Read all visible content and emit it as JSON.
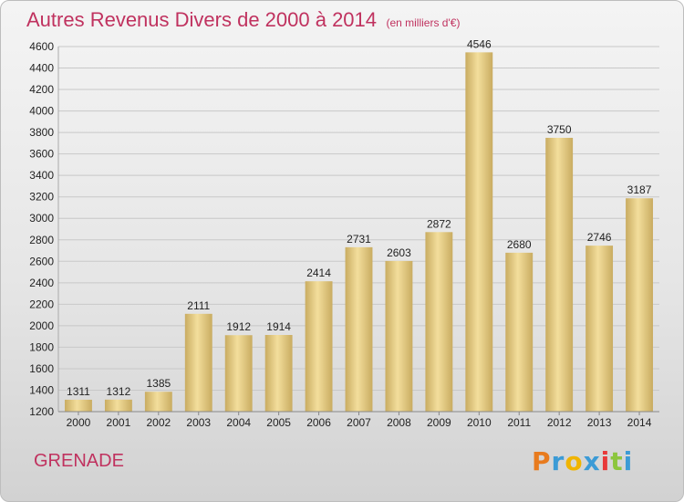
{
  "chart_data": {
    "type": "bar",
    "title": "Autres Revenus Divers de 2000 à 2014",
    "subtitle": "(en milliers d'€)",
    "categories": [
      "2000",
      "2001",
      "2002",
      "2003",
      "2004",
      "2005",
      "2006",
      "2007",
      "2008",
      "2009",
      "2010",
      "2011",
      "2012",
      "2013",
      "2014"
    ],
    "values": [
      1311,
      1312,
      1385,
      2111,
      1912,
      1914,
      2414,
      2731,
      2603,
      2872,
      4546,
      2680,
      3750,
      2746,
      3187
    ],
    "ylim": [
      1200,
      4600
    ],
    "yticks": [
      1200,
      1400,
      1600,
      1800,
      2000,
      2200,
      2400,
      2600,
      2800,
      3000,
      3200,
      3400,
      3600,
      3800,
      4000,
      4200,
      4400,
      4600
    ],
    "grid": true,
    "xlabel": "",
    "ylabel": ""
  },
  "place": "GRENADE",
  "logo": {
    "letters": [
      "P",
      "r",
      "o",
      "x",
      "i",
      "t",
      "i"
    ],
    "colors": [
      "#e87b1e",
      "#3b9bd6",
      "#f0b400",
      "#3b9bd6",
      "#e83a3a",
      "#8cc63e",
      "#3b9bd6"
    ]
  },
  "colors": {
    "title": "#c0325f",
    "bar_light": "#f3de9c",
    "bar_dark": "#c9ac61",
    "grid": "#c8c8c8",
    "axis_text": "#222222"
  }
}
